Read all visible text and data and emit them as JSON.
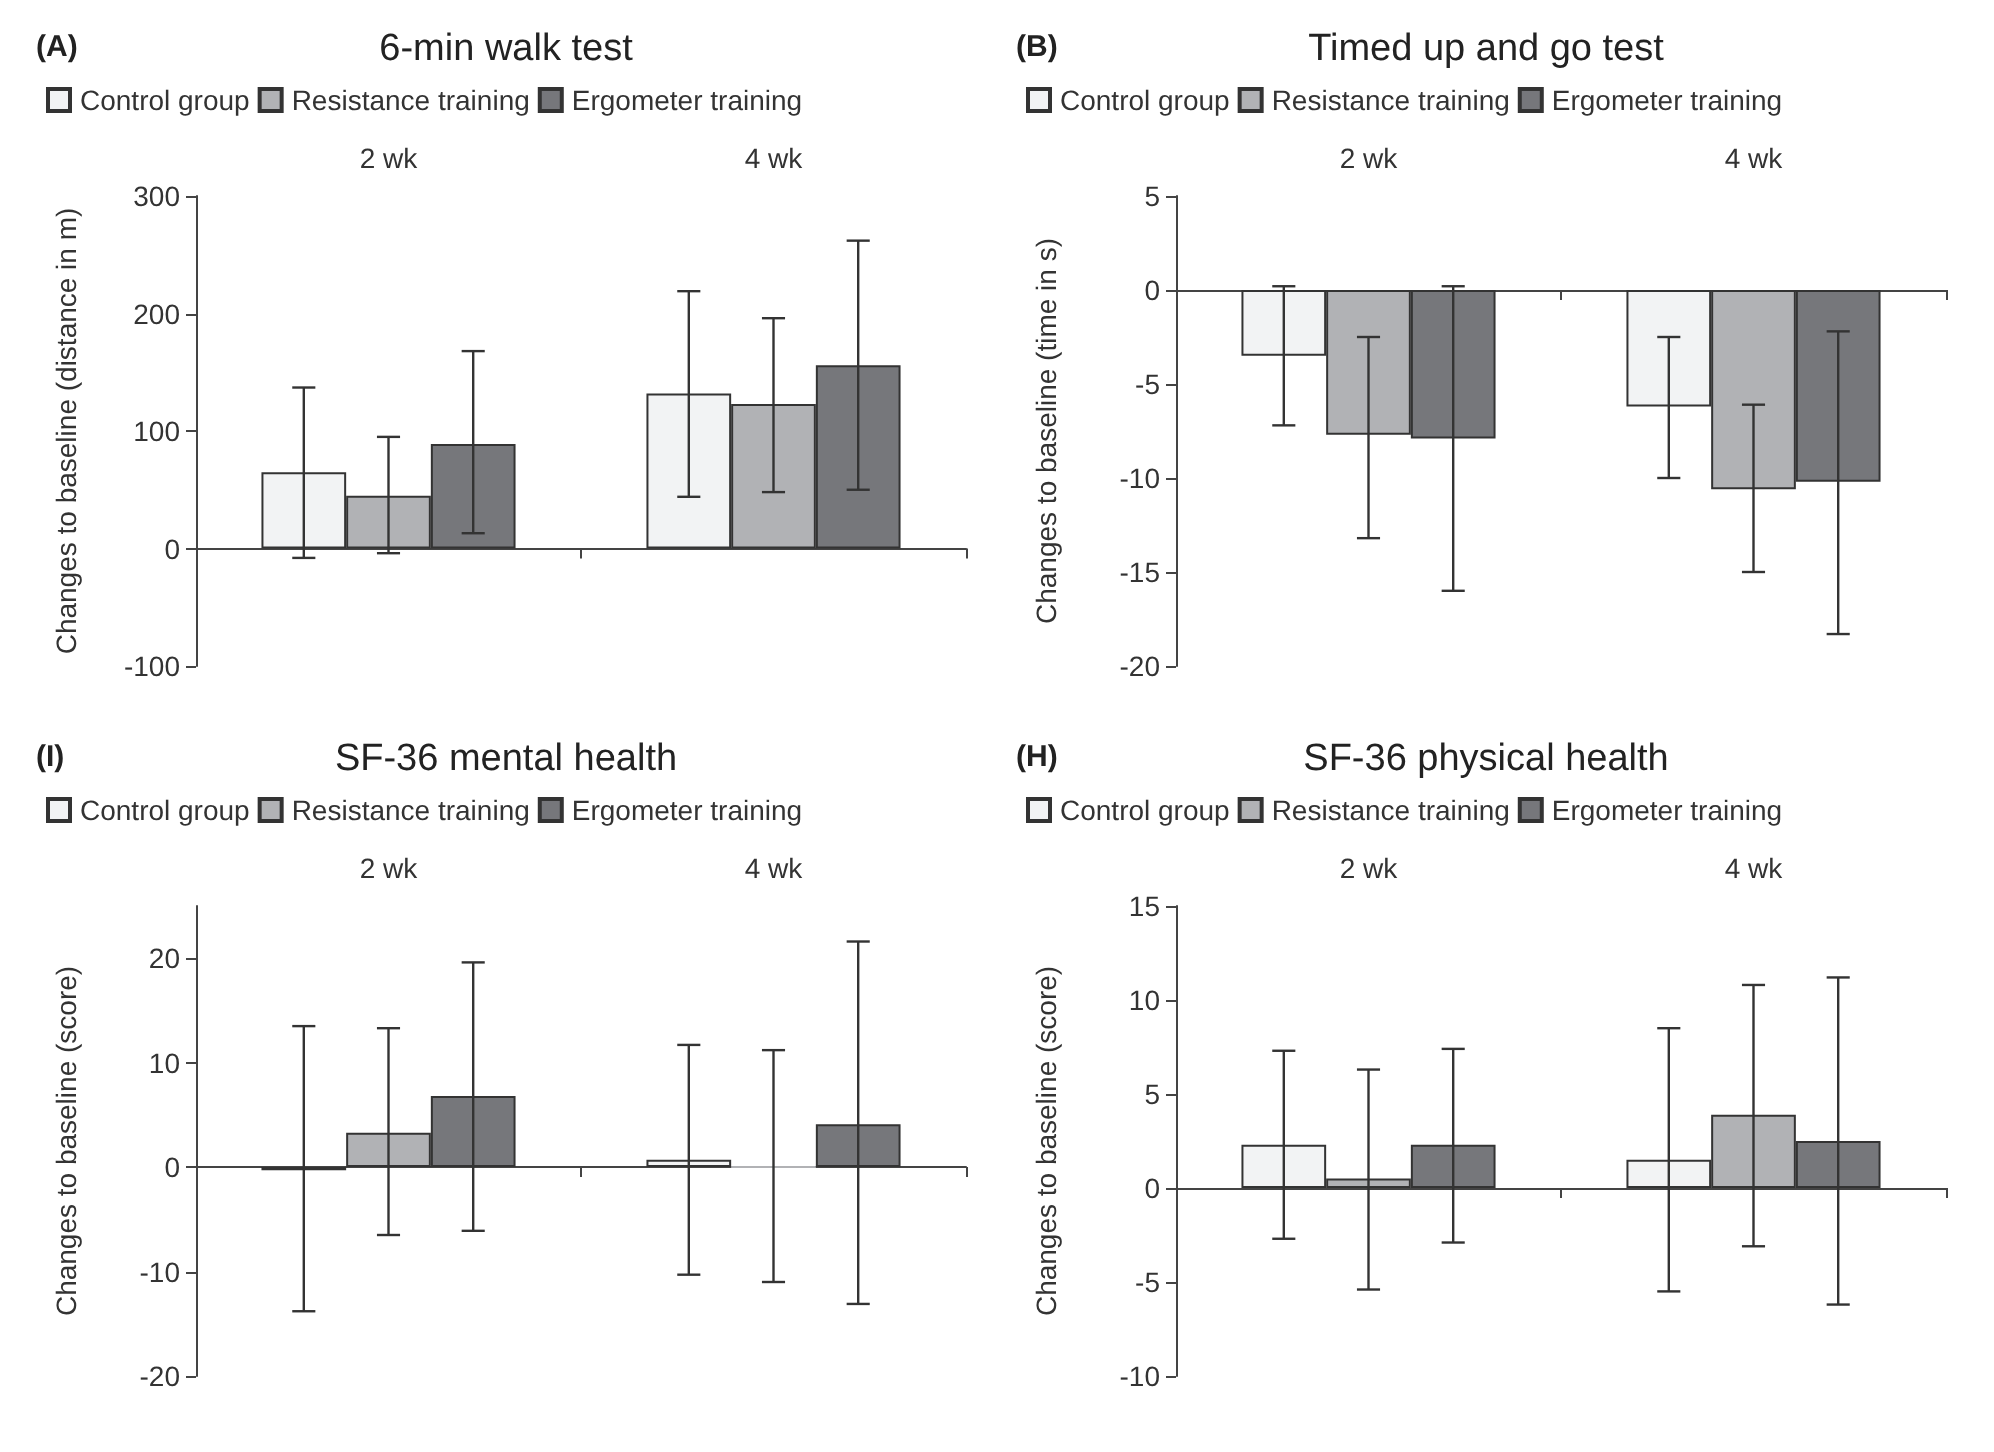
{
  "chart_data": [
    {
      "type": "bar",
      "title": "6-min walk test",
      "annotations": [
        "(A)"
      ],
      "ylabel": "Changes to baseline (distance in m)",
      "categories": [
        "2 wk",
        "4 wk"
      ],
      "ylim": [
        -100,
        300
      ],
      "yticks": [
        -100,
        0,
        100,
        200,
        300
      ],
      "legend": "top left",
      "series": [
        {
          "name": "Control group",
          "color": "#f2f3f4",
          "values": [
            65,
            132
          ],
          "errors": [
            [
              -8,
              137
            ],
            [
              44,
              219
            ]
          ]
        },
        {
          "name": "Resistance training",
          "color": "#b1b2b5",
          "values": [
            45,
            123
          ],
          "errors": [
            [
              -4,
              95
            ],
            [
              48,
              196
            ]
          ]
        },
        {
          "name": "Ergometer training",
          "color": "#76777b",
          "values": [
            89,
            156
          ],
          "errors": [
            [
              13,
              168
            ],
            [
              50,
              262
            ]
          ]
        }
      ]
    },
    {
      "type": "bar",
      "title": "Timed up and go test",
      "annotations": [
        "(B)"
      ],
      "ylabel": "Changes to baseline (time in s)",
      "categories": [
        "2 wk",
        "4 wk"
      ],
      "ylim": [
        -20,
        5
      ],
      "yticks": [
        -20,
        -15,
        -10,
        -5,
        0,
        5
      ],
      "legend": "top left",
      "series": [
        {
          "name": "Control group",
          "color": "#f2f3f4",
          "values": [
            -3.5,
            -6.2
          ],
          "errors": [
            [
              -7.2,
              0.2
            ],
            [
              -10,
              -2.5
            ]
          ]
        },
        {
          "name": "Resistance training",
          "color": "#b1b2b5",
          "values": [
            -7.7,
            -10.6
          ],
          "errors": [
            [
              -13.2,
              -2.5
            ],
            [
              -15,
              -6.1
            ]
          ]
        },
        {
          "name": "Ergometer training",
          "color": "#76777b",
          "values": [
            -7.9,
            -10.2
          ],
          "errors": [
            [
              -16,
              0.2
            ],
            [
              -18.3,
              -2.2
            ]
          ]
        }
      ]
    },
    {
      "type": "bar",
      "title": "SF-36 mental health",
      "annotations": [
        "(I)"
      ],
      "ylabel": "Changes to baseline (score)",
      "categories": [
        "2 wk",
        "4 wk"
      ],
      "ylim": [
        -20,
        25
      ],
      "yticks": [
        -20,
        -10,
        0,
        10,
        20
      ],
      "legend": "top left",
      "series": [
        {
          "name": "Control group",
          "color": "#f2f3f4",
          "values": [
            -0.3,
            0.7
          ],
          "errors": [
            [
              -13.8,
              13.5
            ],
            [
              -10.3,
              11.7
            ]
          ]
        },
        {
          "name": "Resistance training",
          "color": "#b1b2b5",
          "values": [
            3.3,
            0
          ],
          "errors": [
            [
              -6.5,
              13.3
            ],
            [
              -11,
              11.2
            ]
          ]
        },
        {
          "name": "Ergometer training",
          "color": "#76777b",
          "values": [
            6.8,
            4.1
          ],
          "errors": [
            [
              -6.1,
              19.6
            ],
            [
              -13.1,
              21.6
            ]
          ]
        }
      ]
    },
    {
      "type": "bar",
      "title": "SF-36 physical health",
      "annotations": [
        "(H)"
      ],
      "ylabel": "Changes to baseline (score)",
      "categories": [
        "2 wk",
        "4 wk"
      ],
      "ylim": [
        -10,
        15
      ],
      "yticks": [
        -10,
        -5,
        0,
        5,
        10,
        15
      ],
      "legend": "top left",
      "series": [
        {
          "name": "Control group",
          "color": "#f2f3f4",
          "values": [
            2.3,
            1.5
          ],
          "errors": [
            [
              -2.7,
              7.3
            ],
            [
              -5.5,
              8.5
            ]
          ]
        },
        {
          "name": "Resistance training",
          "color": "#b1b2b5",
          "values": [
            0.5,
            3.9
          ],
          "errors": [
            [
              -5.4,
              6.3
            ],
            [
              -3.1,
              10.8
            ]
          ]
        },
        {
          "name": "Ergometer training",
          "color": "#76777b",
          "values": [
            2.3,
            2.5
          ],
          "errors": [
            [
              -2.9,
              7.4
            ],
            [
              -6.2,
              11.2
            ]
          ]
        }
      ]
    }
  ]
}
